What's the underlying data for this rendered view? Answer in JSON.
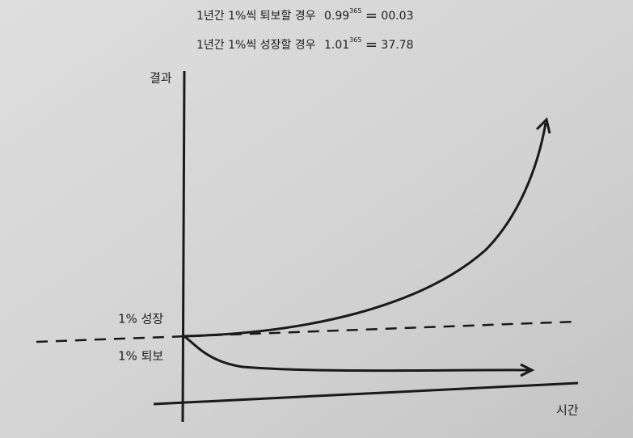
{
  "formulas": [
    {
      "label": "1년간 1%씩 퇴보할 경우",
      "base": "0.99",
      "exponent": "365",
      "operator": "=",
      "result": "00.03"
    },
    {
      "label": "1년간 1%씩 성장할 경우",
      "base": "1.01",
      "exponent": "365",
      "operator": "=",
      "result": "37.78"
    }
  ],
  "axes": {
    "y": "결과",
    "x": "시간"
  },
  "curves": {
    "growth": "1% 성장",
    "decline": "1% 퇴보"
  }
}
